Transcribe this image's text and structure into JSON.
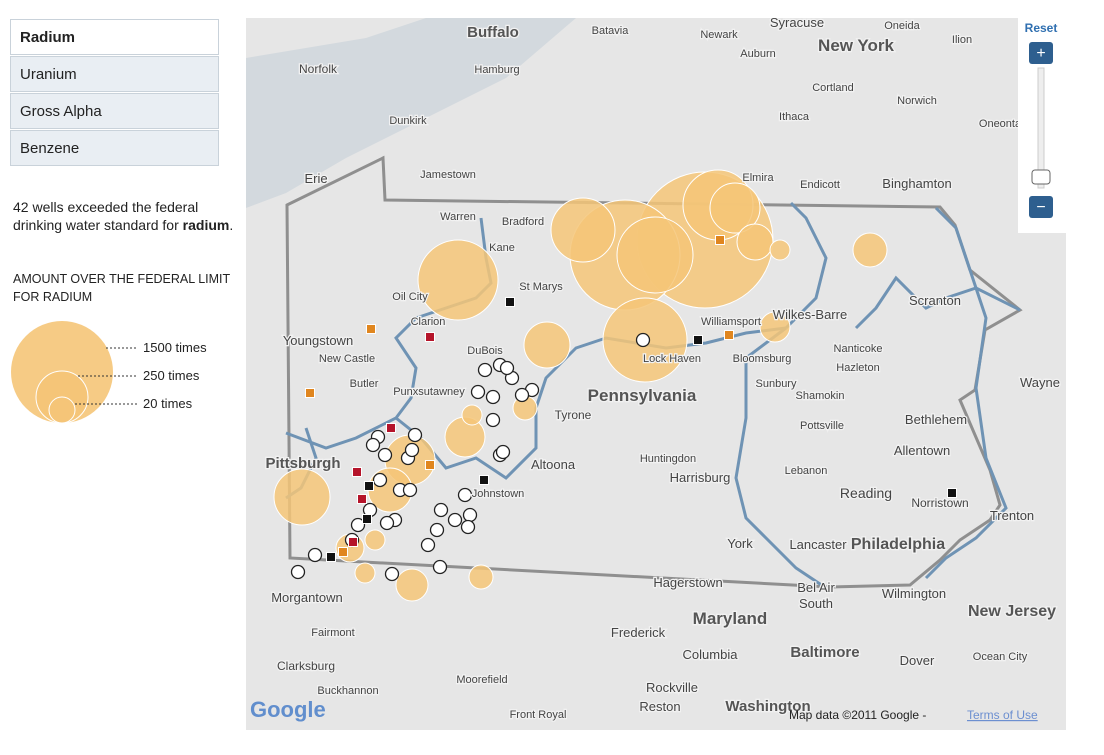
{
  "sidebar": {
    "tabs": [
      "Radium",
      "Uranium",
      "Gross Alpha",
      "Benzene"
    ],
    "description": [
      "42 wells exceeded the federal drinking water standard for",
      "radium",
      "."
    ],
    "legend_title": "AMOUNT OVER THE FEDERAL LIMIT FOR RADIUM",
    "legend_labels": [
      "1500 times",
      "250 times",
      "20 times"
    ]
  },
  "map": {
    "labels": [
      "Buffalo",
      "Batavia",
      "Syracuse",
      "Newark",
      "Oneida",
      "Ilion",
      "New York",
      "Auburn",
      "Norfolk",
      "Hamburg",
      "Cortland",
      "Norwich",
      "Ithaca",
      "Dunkirk",
      "Oneonta",
      "Jamestown",
      "Elmira",
      "Endicott",
      "Binghamton",
      "Erie",
      "Warren",
      "Bradford",
      "Kane",
      "St Marys",
      "Oil City",
      "Clarion",
      "Scranton",
      "Wilkes-Barre",
      "Williamsport",
      "Youngstown",
      "DuBois",
      "New Castle",
      "Lock Haven",
      "Bloomsburg",
      "Nanticoke",
      "Hazleton",
      "Butler",
      "Punxsutawney",
      "Sunbury",
      "Shamokin",
      "Pennsylvania",
      "Wayne",
      "Tyrone",
      "Pottsville",
      "Bethlehem",
      "Huntingdon",
      "Altoona",
      "Allentown",
      "Pittsburgh",
      "Lebanon",
      "Harrisburg",
      "Johnstown",
      "Reading",
      "Norristown",
      "Trenton",
      "York",
      "Lancaster",
      "Philadelphia",
      "Hagerstown",
      "Bel Air",
      "Wilmington",
      "Morgantown",
      "South",
      "New Jersey",
      "Maryland",
      "Fairmont",
      "Frederick",
      "Columbia",
      "Baltimore",
      "Ocean City",
      "Dover",
      "Clarksburg",
      "Moorefield",
      "Buckhannon",
      "Rockville",
      "Reston",
      "Front Royal",
      "Washington"
    ],
    "reset": "Reset",
    "logo": "Google",
    "attribution": "Map data ©2011  Google -",
    "terms": "Terms of Use"
  }
}
